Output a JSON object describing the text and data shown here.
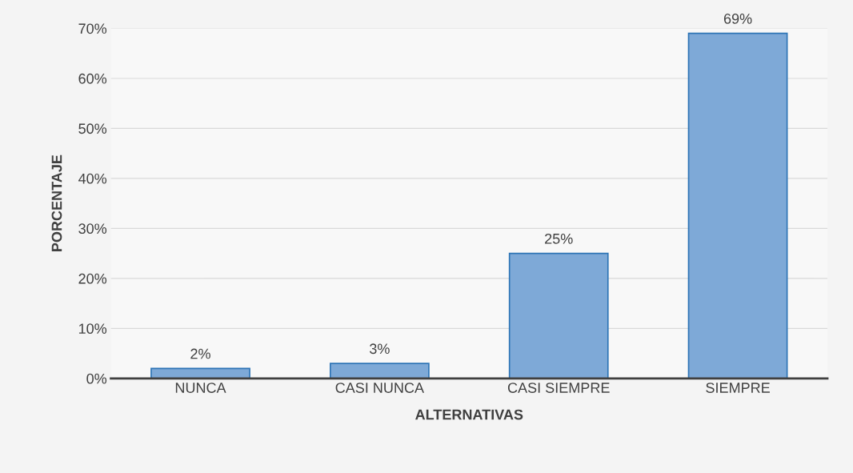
{
  "chart_data": {
    "type": "bar",
    "xlabel": "ALTERNATIVAS",
    "ylabel": "PORCENTAJE",
    "categories": [
      "NUNCA",
      "CASI NUNCA",
      "CASI SIEMPRE",
      "SIEMPRE"
    ],
    "values": [
      2,
      3,
      25,
      69
    ],
    "color": "#6fa8e6",
    "value_labels": [
      "2%",
      "3%",
      "25%",
      "69%"
    ],
    "ylim": [
      0,
      70
    ],
    "yticks": [
      {
        "value": 0,
        "label": "0%"
      },
      {
        "value": 10,
        "label": "10%"
      },
      {
        "value": 20,
        "label": "20%"
      },
      {
        "value": 30,
        "label": "30%"
      },
      {
        "value": 40,
        "label": "40%"
      },
      {
        "value": 50,
        "label": "50%"
      },
      {
        "value": 60,
        "label": "60%"
      },
      {
        "value": 70,
        "label": "70%"
      }
    ],
    "grid": "y",
    "legend": false
  }
}
